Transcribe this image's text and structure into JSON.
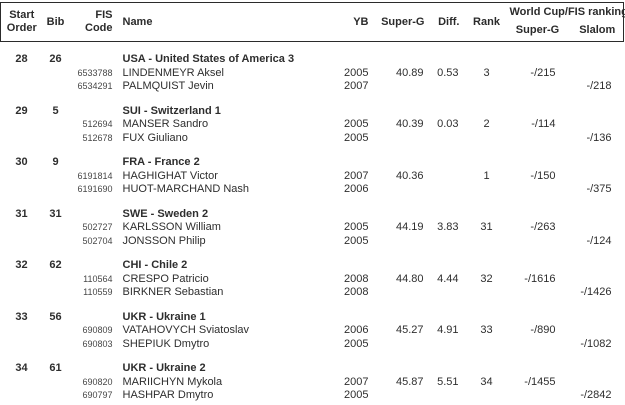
{
  "header": {
    "start_line1": "Start",
    "start_line2": "Order",
    "bib": "Bib",
    "fis_line1": "FIS",
    "fis_line2": "Code",
    "name": "Name",
    "yb": "YB",
    "super_g": "Super-G",
    "diff": "Diff.",
    "rank": "Rank",
    "ranking_group": "World Cup/FIS ranking",
    "ranking_super_g": "Super-G",
    "ranking_slalom": "Slalom"
  },
  "teams": [
    {
      "start_order": "28",
      "bib": "26",
      "team": "USA - United States of America 3",
      "athletes": [
        {
          "fis_code": "6533788",
          "name": "LINDENMEYR Aksel",
          "yb": "2005",
          "super_g": "40.89",
          "diff": "0.53",
          "rank": "3",
          "wc_super_g": "-/215",
          "wc_slalom": ""
        },
        {
          "fis_code": "6534291",
          "name": "PALMQUIST Jevin",
          "yb": "2007",
          "super_g": "",
          "diff": "",
          "rank": "",
          "wc_super_g": "",
          "wc_slalom": "-/218"
        }
      ]
    },
    {
      "start_order": "29",
      "bib": "5",
      "team": "SUI - Switzerland 1",
      "athletes": [
        {
          "fis_code": "512694",
          "name": "MANSER Sandro",
          "yb": "2005",
          "super_g": "40.39",
          "diff": "0.03",
          "rank": "2",
          "wc_super_g": "-/114",
          "wc_slalom": ""
        },
        {
          "fis_code": "512678",
          "name": "FUX Giuliano",
          "yb": "2005",
          "super_g": "",
          "diff": "",
          "rank": "",
          "wc_super_g": "",
          "wc_slalom": "-/136"
        }
      ]
    },
    {
      "start_order": "30",
      "bib": "9",
      "team": "FRA - France 2",
      "athletes": [
        {
          "fis_code": "6191814",
          "name": "HAGHIGHAT Victor",
          "yb": "2007",
          "super_g": "40.36",
          "diff": "",
          "rank": "1",
          "wc_super_g": "-/150",
          "wc_slalom": ""
        },
        {
          "fis_code": "6191690",
          "name": "HUOT-MARCHAND Nash",
          "yb": "2006",
          "super_g": "",
          "diff": "",
          "rank": "",
          "wc_super_g": "",
          "wc_slalom": "-/375"
        }
      ]
    },
    {
      "start_order": "31",
      "bib": "31",
      "team": "SWE - Sweden 2",
      "athletes": [
        {
          "fis_code": "502727",
          "name": "KARLSSON William",
          "yb": "2005",
          "super_g": "44.19",
          "diff": "3.83",
          "rank": "31",
          "wc_super_g": "-/263",
          "wc_slalom": ""
        },
        {
          "fis_code": "502704",
          "name": "JONSSON Philip",
          "yb": "2005",
          "super_g": "",
          "diff": "",
          "rank": "",
          "wc_super_g": "",
          "wc_slalom": "-/124"
        }
      ]
    },
    {
      "start_order": "32",
      "bib": "62",
      "team": "CHI - Chile 2",
      "athletes": [
        {
          "fis_code": "110564",
          "name": "CRESPO Patricio",
          "yb": "2008",
          "super_g": "44.80",
          "diff": "4.44",
          "rank": "32",
          "wc_super_g": "-/1616",
          "wc_slalom": ""
        },
        {
          "fis_code": "110559",
          "name": "BIRKNER Sebastian",
          "yb": "2008",
          "super_g": "",
          "diff": "",
          "rank": "",
          "wc_super_g": "",
          "wc_slalom": "-/1426"
        }
      ]
    },
    {
      "start_order": "33",
      "bib": "56",
      "team": "UKR - Ukraine 1",
      "athletes": [
        {
          "fis_code": "690809",
          "name": "VATAHOVYCH Sviatoslav",
          "yb": "2006",
          "super_g": "45.27",
          "diff": "4.91",
          "rank": "33",
          "wc_super_g": "-/890",
          "wc_slalom": ""
        },
        {
          "fis_code": "690803",
          "name": "SHEPIUK Dmytro",
          "yb": "2005",
          "super_g": "",
          "diff": "",
          "rank": "",
          "wc_super_g": "",
          "wc_slalom": "-/1082"
        }
      ]
    },
    {
      "start_order": "34",
      "bib": "61",
      "team": "UKR - Ukraine 2",
      "athletes": [
        {
          "fis_code": "690820",
          "name": "MARIICHYN Mykola",
          "yb": "2007",
          "super_g": "45.87",
          "diff": "5.51",
          "rank": "34",
          "wc_super_g": "-/1455",
          "wc_slalom": ""
        },
        {
          "fis_code": "690797",
          "name": "HASHPAR Dmytro",
          "yb": "2005",
          "super_g": "",
          "diff": "",
          "rank": "",
          "wc_super_g": "",
          "wc_slalom": "-/2842"
        }
      ]
    }
  ]
}
